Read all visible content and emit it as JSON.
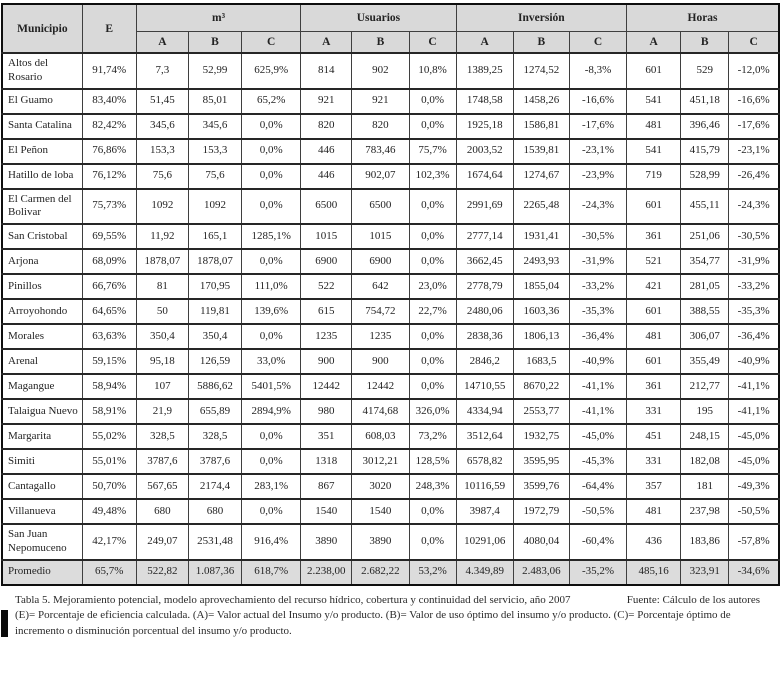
{
  "table": {
    "groups": {
      "municipio": "Municipio",
      "e": "E",
      "m3": "m³",
      "usuarios": "Usuarios",
      "inversion": "Inversión",
      "horas": "Horas"
    },
    "sub_labels": {
      "a": "A",
      "b": "B",
      "c": "C"
    },
    "rows": [
      {
        "name": "Altos del Rosario",
        "cells": [
          "91,74%",
          "7,3",
          "52,99",
          "625,9%",
          "814",
          "902",
          "10,8%",
          "1389,25",
          "1274,52",
          "-8,3%",
          "601",
          "529",
          "-12,0%"
        ]
      },
      {
        "name": "El Guamo",
        "cells": [
          "83,40%",
          "51,45",
          "85,01",
          "65,2%",
          "921",
          "921",
          "0,0%",
          "1748,58",
          "1458,26",
          "-16,6%",
          "541",
          "451,18",
          "-16,6%"
        ]
      },
      {
        "name": "Santa Catalina",
        "cells": [
          "82,42%",
          "345,6",
          "345,6",
          "0,0%",
          "820",
          "820",
          "0,0%",
          "1925,18",
          "1586,81",
          "-17,6%",
          "481",
          "396,46",
          "-17,6%"
        ]
      },
      {
        "name": "El Peñon",
        "cells": [
          "76,86%",
          "153,3",
          "153,3",
          "0,0%",
          "446",
          "783,46",
          "75,7%",
          "2003,52",
          "1539,81",
          "-23,1%",
          "541",
          "415,79",
          "-23,1%"
        ]
      },
      {
        "name": "Hatillo de loba",
        "cells": [
          "76,12%",
          "75,6",
          "75,6",
          "0,0%",
          "446",
          "902,07",
          "102,3%",
          "1674,64",
          "1274,67",
          "-23,9%",
          "719",
          "528,99",
          "-26,4%"
        ]
      },
      {
        "name": "El Carmen del Bolivar",
        "cells": [
          "75,73%",
          "1092",
          "1092",
          "0,0%",
          "6500",
          "6500",
          "0,0%",
          "2991,69",
          "2265,48",
          "-24,3%",
          "601",
          "455,11",
          "-24,3%"
        ]
      },
      {
        "name": "San Cristobal",
        "cells": [
          "69,55%",
          "11,92",
          "165,1",
          "1285,1%",
          "1015",
          "1015",
          "0,0%",
          "2777,14",
          "1931,41",
          "-30,5%",
          "361",
          "251,06",
          "-30,5%"
        ]
      },
      {
        "name": "Arjona",
        "cells": [
          "68,09%",
          "1878,07",
          "1878,07",
          "0,0%",
          "6900",
          "6900",
          "0,0%",
          "3662,45",
          "2493,93",
          "-31,9%",
          "521",
          "354,77",
          "-31,9%"
        ]
      },
      {
        "name": "Pinillos",
        "cells": [
          "66,76%",
          "81",
          "170,95",
          "111,0%",
          "522",
          "642",
          "23,0%",
          "2778,79",
          "1855,04",
          "-33,2%",
          "421",
          "281,05",
          "-33,2%"
        ]
      },
      {
        "name": "Arroyohondo",
        "cells": [
          "64,65%",
          "50",
          "119,81",
          "139,6%",
          "615",
          "754,72",
          "22,7%",
          "2480,06",
          "1603,36",
          "-35,3%",
          "601",
          "388,55",
          "-35,3%"
        ]
      },
      {
        "name": "Morales",
        "cells": [
          "63,63%",
          "350,4",
          "350,4",
          "0,0%",
          "1235",
          "1235",
          "0,0%",
          "2838,36",
          "1806,13",
          "-36,4%",
          "481",
          "306,07",
          "-36,4%"
        ]
      },
      {
        "name": "Arenal",
        "cells": [
          "59,15%",
          "95,18",
          "126,59",
          "33,0%",
          "900",
          "900",
          "0,0%",
          "2846,2",
          "1683,5",
          "-40,9%",
          "601",
          "355,49",
          "-40,9%"
        ]
      },
      {
        "name": "Magangue",
        "cells": [
          "58,94%",
          "107",
          "5886,62",
          "5401,5%",
          "12442",
          "12442",
          "0,0%",
          "14710,55",
          "8670,22",
          "-41,1%",
          "361",
          "212,77",
          "-41,1%"
        ]
      },
      {
        "name": "Talaigua Nuevo",
        "cells": [
          "58,91%",
          "21,9",
          "655,89",
          "2894,9%",
          "980",
          "4174,68",
          "326,0%",
          "4334,94",
          "2553,77",
          "-41,1%",
          "331",
          "195",
          "-41,1%"
        ]
      },
      {
        "name": "Margarita",
        "cells": [
          "55,02%",
          "328,5",
          "328,5",
          "0,0%",
          "351",
          "608,03",
          "73,2%",
          "3512,64",
          "1932,75",
          "-45,0%",
          "451",
          "248,15",
          "-45,0%"
        ]
      },
      {
        "name": "Simiti",
        "cells": [
          "55,01%",
          "3787,6",
          "3787,6",
          "0,0%",
          "1318",
          "3012,21",
          "128,5%",
          "6578,82",
          "3595,95",
          "-45,3%",
          "331",
          "182,08",
          "-45,0%"
        ]
      },
      {
        "name": "Cantagallo",
        "cells": [
          "50,70%",
          "567,65",
          "2174,4",
          "283,1%",
          "867",
          "3020",
          "248,3%",
          "10116,59",
          "3599,76",
          "-64,4%",
          "357",
          "181",
          "-49,3%"
        ]
      },
      {
        "name": "Villanueva",
        "cells": [
          "49,48%",
          "680",
          "680",
          "0,0%",
          "1540",
          "1540",
          "0,0%",
          "3987,4",
          "1972,79",
          "-50,5%",
          "481",
          "237,98",
          "-50,5%"
        ]
      },
      {
        "name": "San Juan Nepomuceno",
        "cells": [
          "42,17%",
          "249,07",
          "2531,48",
          "916,4%",
          "3890",
          "3890",
          "0,0%",
          "10291,06",
          "4080,04",
          "-60,4%",
          "436",
          "183,86",
          "-57,8%"
        ]
      },
      {
        "name": "Promedio",
        "summary": true,
        "cells": [
          "65,7%",
          "522,82",
          "1.087,36",
          "618,7%",
          "2.238,00",
          "2.682,22",
          "53,2%",
          "4.349,89",
          "2.483,06",
          "-35,2%",
          "485,16",
          "323,91",
          "-34,6%"
        ]
      }
    ]
  },
  "caption": {
    "title": "Tabla 5. Mejoramiento potencial, modelo aprovechamiento del recurso hídrico, cobertura y continuidad del servicio, año 2007",
    "source": "Fuente: Cálculo de los autores",
    "note_line1": "(E)= Porcentaje de eficiencia calculada. (A)= Valor actual del Insumo y/o producto. (B)= Valor de uso óptimo del insumo y/o producto. (C)= Porcentaje óptimo de",
    "note_line2": "incremento o disminución porcentual del insumo y/o producto."
  },
  "colors": {
    "header_bg": "#d9d9d9",
    "summary_bg": "#dcdcdc",
    "border": "#3f3f3f",
    "text": "#232323"
  }
}
